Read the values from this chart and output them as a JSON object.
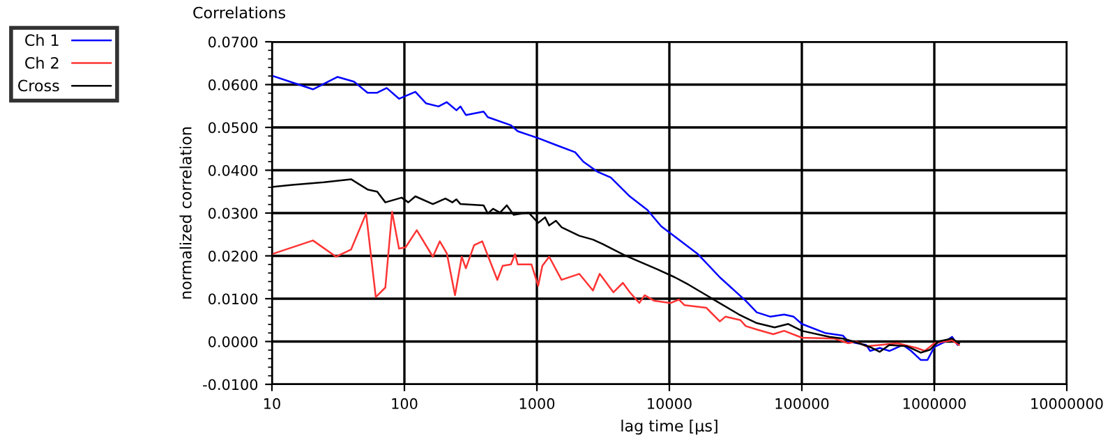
{
  "chart_data": {
    "type": "line",
    "title": "Correlations",
    "xlabel": "lag time [µs]",
    "ylabel": "normalized correlation",
    "log": "x",
    "grid": true,
    "legend": "top left",
    "marker": "none",
    "line_style": "solid",
    "xlim": [
      10,
      10000000
    ],
    "xticks": [
      10,
      100,
      1000,
      10000,
      100000,
      1000000,
      10000000
    ],
    "ylim": [
      -0.01,
      0.07
    ],
    "yticks": [
      {
        "value": -0.01,
        "label": "-0.0100"
      },
      {
        "value": 0,
        "label": "0.0000"
      },
      {
        "value": 0.01,
        "label": "0.0100"
      },
      {
        "value": 0.02,
        "label": "0.0200"
      },
      {
        "value": 0.03,
        "label": "0.0300"
      },
      {
        "value": 0.04,
        "label": "0.0400"
      },
      {
        "value": 0.05,
        "label": "0.0500"
      },
      {
        "value": 0.06,
        "label": "0.0600"
      },
      {
        "value": 0.07,
        "label": "0.0700"
      }
    ],
    "series": [
      {
        "name": "Ch 1",
        "color": "#0000ff",
        "x": [
          10,
          20.4,
          31.3,
          41.6,
          52.7,
          62.3,
          73.5,
          91,
          121,
          146,
          181,
          209,
          247,
          265,
          291,
          396,
          426,
          637,
          717,
          1023,
          1393,
          1944,
          2243,
          2845,
          3609,
          5027,
          6843,
          8677,
          10990,
          16440,
          24040,
          37760,
          45700,
          57970,
          73500,
          86700,
          100000,
          149600,
          203900,
          224300,
          305500,
          327600,
          387500,
          457500,
          580000,
          668000,
          789000,
          888000,
          1000000,
          1180000,
          1362000,
          1497000,
          1535000
        ],
        "values": [
          0.0621,
          0.0589,
          0.0618,
          0.0607,
          0.0581,
          0.0581,
          0.0592,
          0.0567,
          0.0583,
          0.0556,
          0.0549,
          0.0559,
          0.054,
          0.0549,
          0.0529,
          0.0537,
          0.0524,
          0.0505,
          0.0491,
          0.0475,
          0.0459,
          0.0442,
          0.042,
          0.0397,
          0.0383,
          0.0339,
          0.0307,
          0.0269,
          0.0245,
          0.0204,
          0.015,
          0.0095,
          0.0068,
          0.0058,
          0.0063,
          0.0058,
          0.0041,
          0.002,
          0.0014,
          0.0,
          -0.0008,
          -0.0022,
          -0.0015,
          -0.0022,
          -0.0008,
          -0.0022,
          -0.0043,
          -0.0043,
          -0.0013,
          -0.0002,
          0.0011,
          -0.0008,
          -0.0004
        ]
      },
      {
        "name": "Ch 2",
        "color": "#ff3333",
        "x": [
          10,
          20.4,
          30.5,
          39.6,
          51.4,
          60.8,
          71.8,
          80.7,
          91,
          102,
          124,
          164,
          185,
          209,
          241,
          271,
          291,
          336,
          387,
          503,
          552,
          637,
          684,
          717,
          910,
          1023,
          1100,
          1238,
          1535,
          2089,
          2650,
          2979,
          3780,
          4460,
          5027,
          5930,
          6520,
          7710,
          10230,
          11800,
          12970,
          18970,
          24040,
          26470,
          34360,
          37760,
          45700,
          60790,
          73500,
          100000,
          176500,
          224300,
          258000,
          305500,
          387500,
          527000,
          735000,
          847000,
          1000000,
          1362000,
          1535000
        ],
        "values": [
          0.0204,
          0.0236,
          0.0198,
          0.0215,
          0.0299,
          0.0104,
          0.0126,
          0.0303,
          0.0217,
          0.022,
          0.026,
          0.0198,
          0.0234,
          0.0206,
          0.0108,
          0.0198,
          0.0171,
          0.0225,
          0.0234,
          0.0144,
          0.0177,
          0.018,
          0.0204,
          0.018,
          0.018,
          0.013,
          0.0177,
          0.0198,
          0.0144,
          0.0158,
          0.0119,
          0.0158,
          0.0115,
          0.0137,
          0.0115,
          0.009,
          0.0108,
          0.0095,
          0.009,
          0.0098,
          0.0085,
          0.0079,
          0.0047,
          0.0058,
          0.005,
          0.0036,
          0.0028,
          0.0017,
          0.0025,
          0.0009,
          0.0007,
          -0.0004,
          0.0,
          -0.0011,
          -0.0008,
          -0.0004,
          -0.0015,
          -0.0022,
          -0.0004,
          0.0003,
          -0.0008
        ]
      },
      {
        "name": "Cross",
        "color": "#000000",
        "x": [
          10,
          14.3,
          24.7,
          39.6,
          52.7,
          62.3,
          71.8,
          95.3,
          107,
          121,
          164,
          204,
          230,
          247,
          265,
          396,
          426,
          467,
          527,
          593,
          668,
          867,
          1023,
          1153,
          1238,
          1393,
          1535,
          2089,
          2650,
          3128,
          4573,
          5797,
          8079,
          10990,
          13930,
          22440,
          33600,
          45700,
          62300,
          78900,
          100000,
          160600,
          203900,
          258000,
          327600,
          387500,
          457500,
          622000,
          789000,
          931000,
          1074000,
          1362000,
          1535000
        ],
        "values": [
          0.0361,
          0.0366,
          0.0372,
          0.0379,
          0.0355,
          0.035,
          0.0325,
          0.0336,
          0.0325,
          0.0339,
          0.0321,
          0.0334,
          0.0325,
          0.0332,
          0.0321,
          0.0318,
          0.0299,
          0.031,
          0.0301,
          0.0318,
          0.0296,
          0.0301,
          0.0277,
          0.029,
          0.0271,
          0.0282,
          0.0267,
          0.0247,
          0.0238,
          0.0228,
          0.0202,
          0.0188,
          0.0169,
          0.015,
          0.0133,
          0.0095,
          0.0063,
          0.0043,
          0.0033,
          0.0041,
          0.0025,
          0.0011,
          0.0007,
          -0.0002,
          -0.0013,
          -0.0024,
          -0.0008,
          -0.0011,
          -0.0026,
          -0.0019,
          0.0,
          0.0007,
          -0.0004
        ]
      }
    ]
  }
}
